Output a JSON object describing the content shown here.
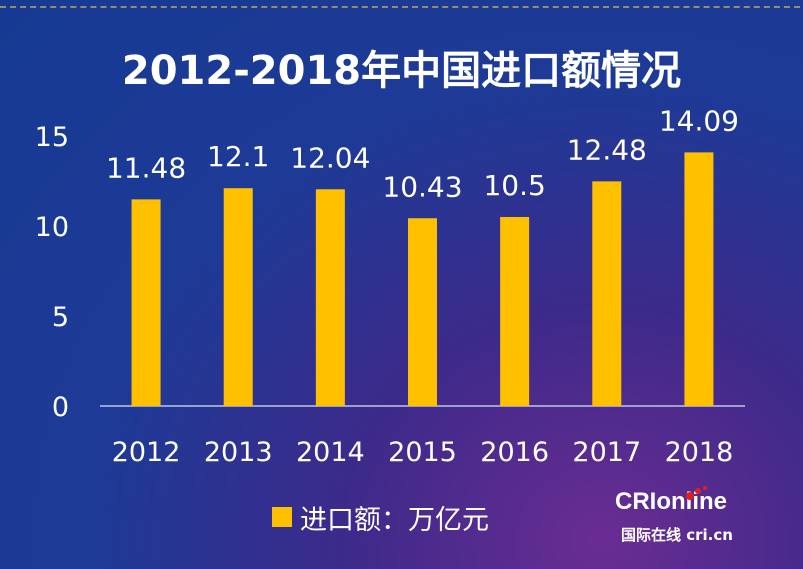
{
  "title": "2012-2018年中国进口额情况",
  "legend_label": "进口额：万亿元",
  "logo": {
    "main": "CRIonline",
    "sub": "国际在线 cri.cn"
  },
  "colors": {
    "bar": "#ffc000",
    "text": "#ffffff",
    "axis": "#bfc6e0"
  },
  "chart_data": {
    "type": "bar",
    "title": "2012-2018年中国进口额情况",
    "categories": [
      "2012",
      "2013",
      "2014",
      "2015",
      "2016",
      "2017",
      "2018"
    ],
    "series": [
      {
        "name": "进口额：万亿元",
        "values": [
          11.48,
          12.1,
          12.04,
          10.43,
          10.5,
          12.48,
          14.09
        ]
      }
    ],
    "data_labels": [
      "11.48",
      "12.1",
      "12.04",
      "10.43",
      "10.5",
      "12.48",
      "14.09"
    ],
    "y_ticks": [
      0,
      5,
      10,
      15
    ],
    "ylim": [
      0,
      15
    ],
    "xlabel": "",
    "ylabel": "",
    "grid": false,
    "legend_position": "bottom"
  }
}
